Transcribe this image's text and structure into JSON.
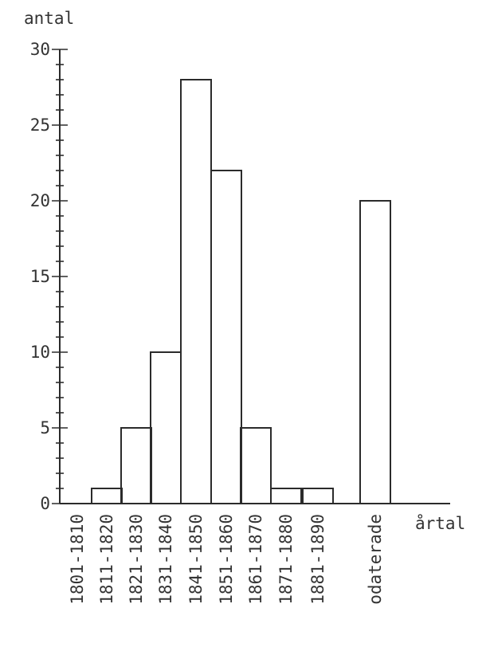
{
  "chart_data": {
    "type": "bar",
    "ylabel": "antal",
    "xlabel": "årtal",
    "ylim": [
      0,
      30
    ],
    "yticks": [
      0,
      5,
      10,
      15,
      20,
      25,
      30
    ],
    "categories": [
      "1801-1810",
      "1811-1820",
      "1821-1830",
      "1831-1840",
      "1841-1850",
      "1851-1860",
      "1861-1870",
      "1871-1880",
      "1881-1890",
      "odaterade"
    ],
    "values": [
      0,
      1,
      5,
      10,
      28,
      22,
      5,
      1,
      1,
      20
    ],
    "grid": false,
    "colors": {
      "ink": "#2b2b2b",
      "text": "#333333",
      "background": "#ffffff"
    }
  }
}
